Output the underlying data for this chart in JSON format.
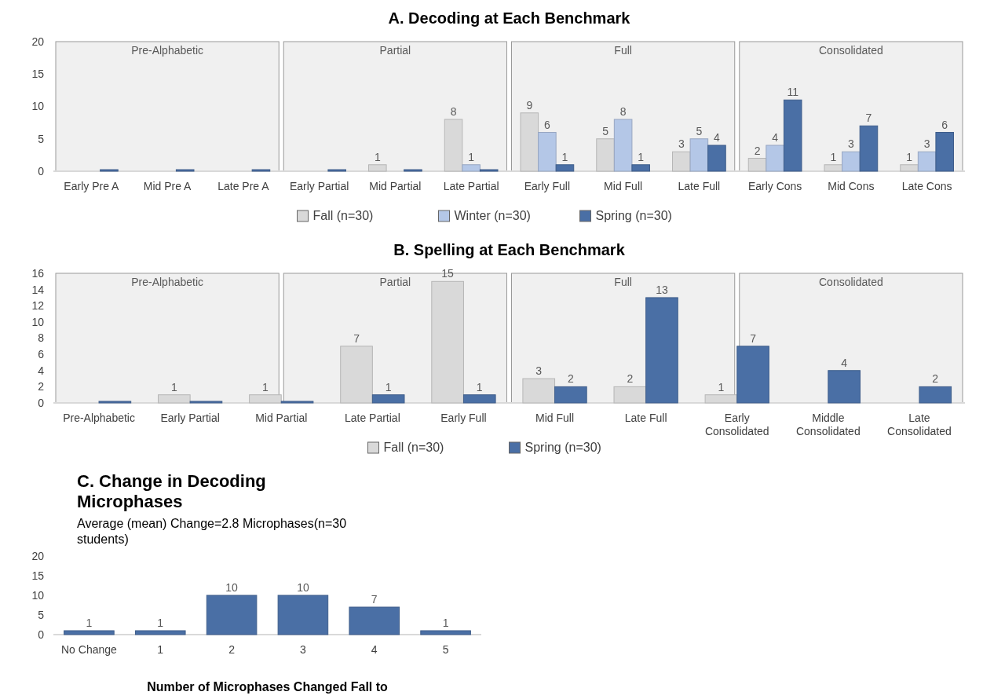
{
  "chart_data": [
    {
      "type": "bar",
      "title": "A. Decoding at Each Benchmark",
      "categories": [
        "Early Pre A",
        "Mid Pre A",
        "Late Pre A",
        "Early Partial",
        "Mid Partial",
        "Late Partial",
        "Early Full",
        "Mid Full",
        "Late Full",
        "Early Cons",
        "Mid Cons",
        "Late Cons"
      ],
      "series": [
        {
          "name": "Fall (n=30)",
          "color": "#d9d9d9",
          "values": [
            null,
            null,
            null,
            null,
            1,
            8,
            9,
            5,
            3,
            2,
            1,
            1
          ],
          "value_labels": [
            null,
            null,
            null,
            null,
            "1",
            "8",
            "9",
            "5",
            "3",
            "2",
            "1",
            "1"
          ]
        },
        {
          "name": "Winter (n=30)",
          "color": "#b4c7e7",
          "values": [
            null,
            null,
            null,
            null,
            null,
            1,
            6,
            8,
            5,
            4,
            3,
            3
          ],
          "value_labels": [
            null,
            null,
            null,
            null,
            null,
            "1",
            "6",
            "8",
            "5",
            "4",
            "3",
            "3"
          ]
        },
        {
          "name": "Spring (n=30)",
          "color": "#4a6fa5",
          "values": [
            0,
            0,
            0,
            0,
            0,
            0,
            1,
            1,
            4,
            11,
            7,
            6
          ],
          "value_labels": [
            null,
            null,
            null,
            null,
            null,
            null,
            "1",
            "1",
            "4",
            "11",
            "7",
            "6"
          ]
        }
      ],
      "ylim": [
        0,
        20
      ],
      "yticks": [
        0,
        5,
        10,
        15,
        20
      ],
      "legend": "bottom",
      "annotations": [
        "Pre-Alphabetic",
        "Partial",
        "Full",
        "Consolidated"
      ]
    },
    {
      "type": "bar",
      "title": "B. Spelling at Each Benchmark",
      "categories": [
        "Pre-Alphabetic",
        "Early Partial",
        "Mid Partial",
        "Late Partial",
        "Early Full",
        "Mid Full",
        "Late Full",
        "Early Consolidated",
        "Middle Consolidated",
        "Late Consolidated"
      ],
      "series": [
        {
          "name": "Fall (n=30)",
          "color": "#d9d9d9",
          "values": [
            null,
            1,
            1,
            7,
            15,
            3,
            2,
            1,
            null,
            null
          ],
          "value_labels": [
            null,
            "1",
            "1",
            "7",
            "15",
            "3",
            "2",
            "1",
            null,
            null
          ]
        },
        {
          "name": "Spring (n=30)",
          "color": "#4a6fa5",
          "values": [
            0,
            0,
            0,
            1,
            1,
            2,
            13,
            7,
            4,
            2
          ],
          "value_labels": [
            null,
            null,
            null,
            "1",
            "1",
            "2",
            "13",
            "7",
            "4",
            "2"
          ]
        }
      ],
      "ylim": [
        0,
        16
      ],
      "yticks": [
        0,
        2,
        4,
        6,
        8,
        10,
        12,
        14,
        16
      ],
      "legend": "bottom",
      "annotations": [
        "Pre-Alphabetic",
        "Partial",
        "Full",
        "Consolidated"
      ]
    },
    {
      "type": "bar",
      "title": "C. Change in Decoding Microphases",
      "subtitle": "Average (mean) Change=2.8 Microphases(n=30 students)",
      "xlabel": "Number of Microphases Changed Fall to",
      "categories": [
        "No Change",
        "1",
        "2",
        "3",
        "4",
        "5"
      ],
      "values": [
        1,
        1,
        10,
        10,
        7,
        1
      ],
      "color": "#4a6fa5",
      "data_labels": true,
      "ylim": [
        0,
        20
      ],
      "yticks": [
        0,
        5,
        10,
        15,
        20
      ]
    }
  ]
}
